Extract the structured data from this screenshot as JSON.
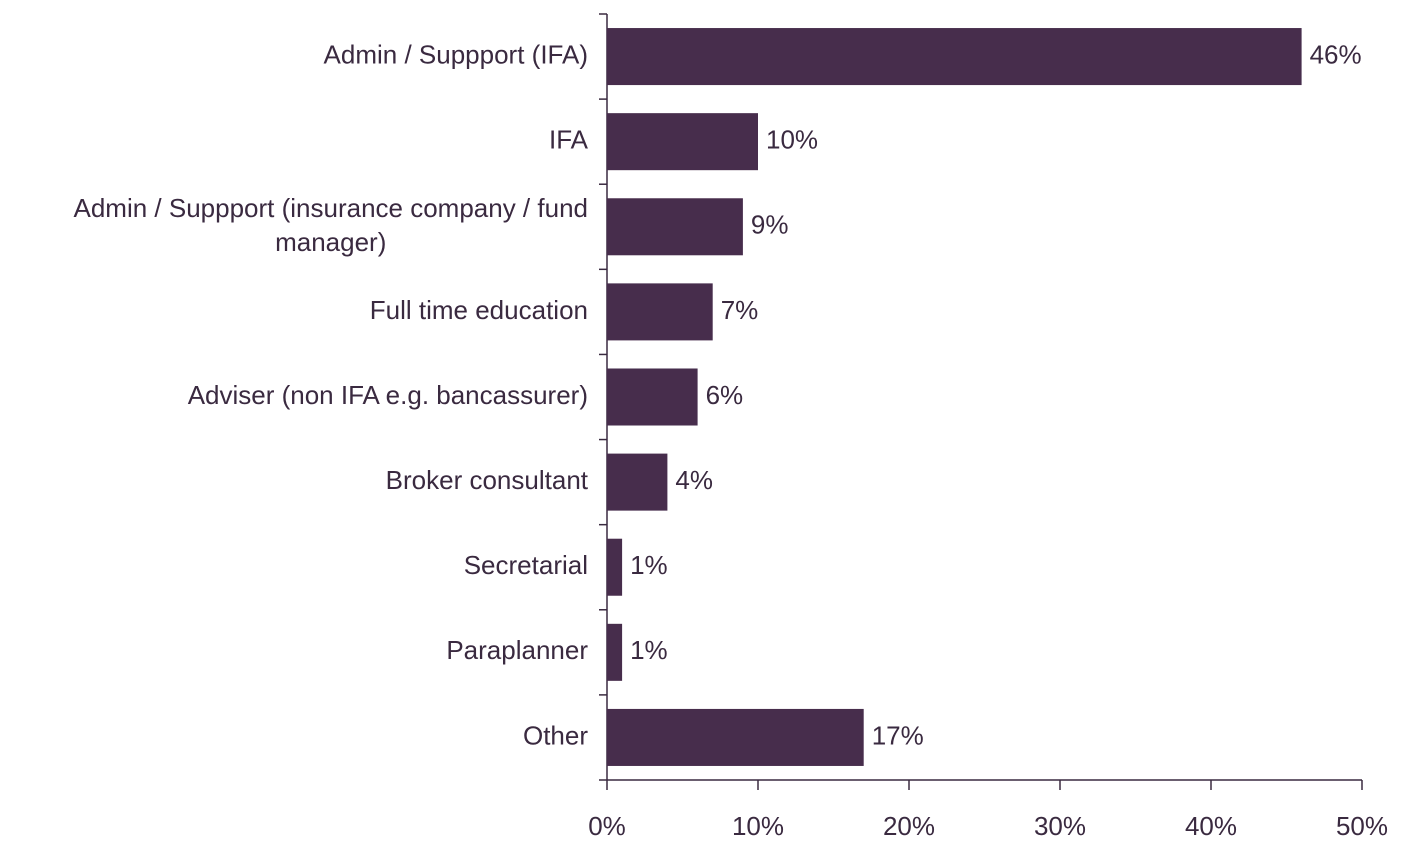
{
  "chart_data": {
    "type": "hbar",
    "categories": [
      "Admin / Suppport (IFA)",
      "IFA",
      "Admin / Suppport (insurance company / fund manager)",
      "Full time education",
      "Adviser (non IFA e.g. bancassurer)",
      "Broker consultant",
      "Secretarial",
      "Paraplanner",
      "Other"
    ],
    "values": [
      46,
      10,
      9,
      7,
      6,
      4,
      1,
      1,
      17
    ],
    "value_labels": [
      "46%",
      "10%",
      "9%",
      "7%",
      "6%",
      "4%",
      "1%",
      "1%",
      "17%"
    ],
    "color": "#472d4c",
    "xlim": [
      0,
      50
    ],
    "xticks": [
      {
        "value": 0,
        "label": "0%"
      },
      {
        "value": 10,
        "label": "10%"
      },
      {
        "value": 20,
        "label": "20%"
      },
      {
        "value": 30,
        "label": "30%"
      },
      {
        "value": 40,
        "label": "40%"
      },
      {
        "value": 50,
        "label": "50%"
      }
    ]
  }
}
